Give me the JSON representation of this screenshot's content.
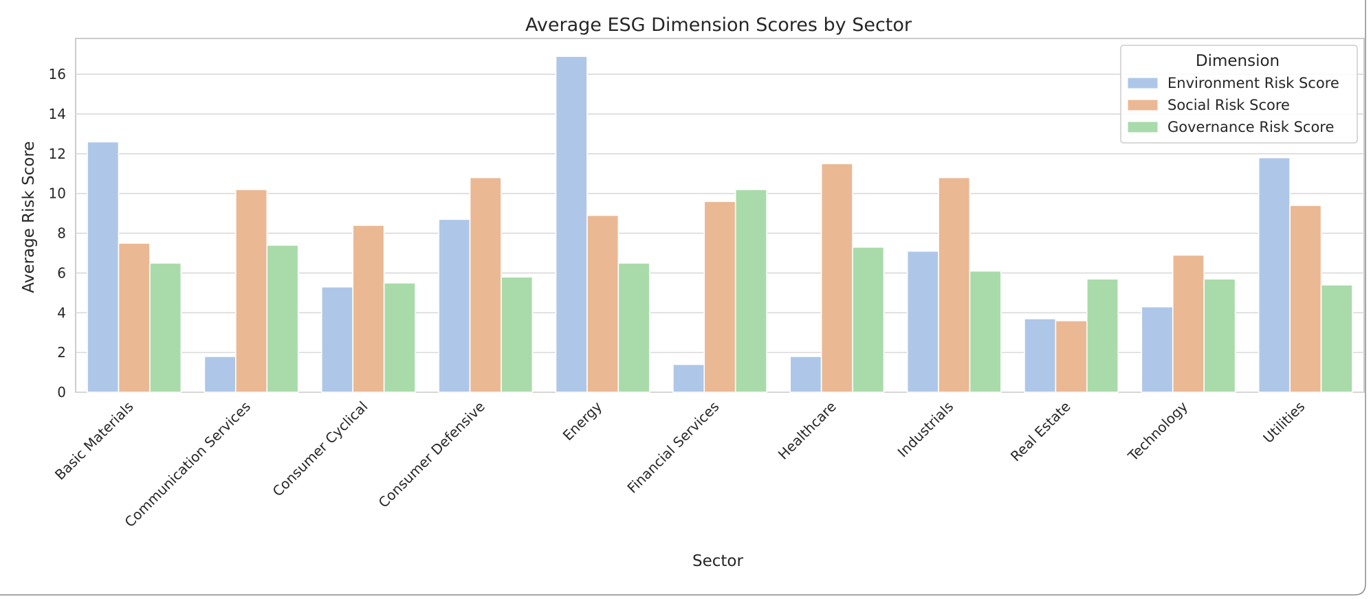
{
  "chart_data": {
    "type": "bar",
    "title": "Average ESG Dimension Scores by Sector",
    "xlabel": "Sector",
    "ylabel": "Average Risk Score",
    "ylim": [
      0,
      17.8
    ],
    "yticks": [
      "0",
      "2",
      "4",
      "6",
      "8",
      "10",
      "12",
      "14",
      "16"
    ],
    "grid": true,
    "legend": {
      "title": "Dimension",
      "position": "top-right"
    },
    "categories": [
      "Basic Materials",
      "Communication Services",
      "Consumer Cyclical",
      "Consumer Defensive",
      "Energy",
      "Financial Services",
      "Healthcare",
      "Industrials",
      "Real Estate",
      "Technology",
      "Utilities"
    ],
    "series": [
      {
        "name": "Environment Risk Score",
        "color": "#aec7e8",
        "values": [
          12.6,
          1.8,
          5.3,
          8.7,
          16.9,
          1.4,
          1.8,
          7.1,
          3.7,
          4.3,
          11.8
        ]
      },
      {
        "name": "Social Risk Score",
        "color": "#ebb894",
        "values": [
          7.5,
          10.2,
          8.4,
          10.8,
          8.9,
          9.6,
          11.5,
          10.8,
          3.6,
          6.9,
          9.4
        ]
      },
      {
        "name": "Governance Risk Score",
        "color": "#a9dbaa",
        "values": [
          6.5,
          7.4,
          5.5,
          5.8,
          6.5,
          10.2,
          7.3,
          6.1,
          5.7,
          5.7,
          5.4
        ]
      }
    ]
  }
}
